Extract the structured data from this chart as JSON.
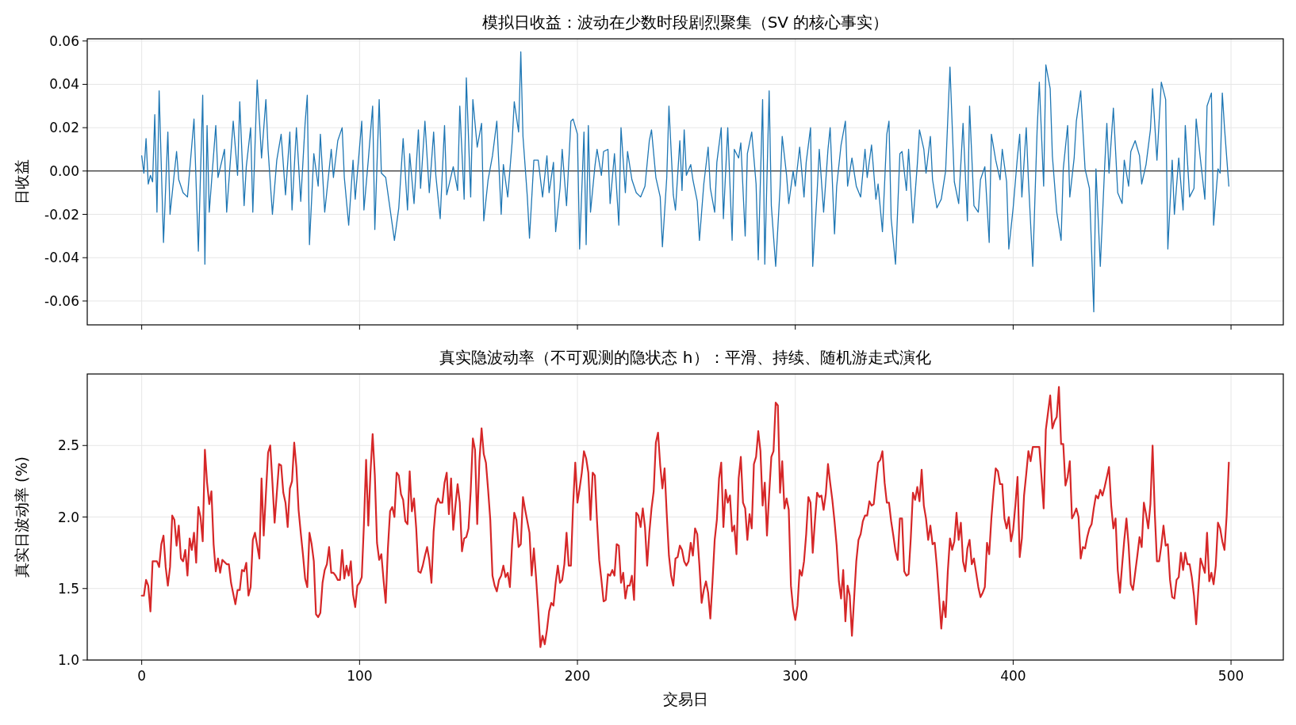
{
  "chart_data": [
    {
      "type": "line",
      "title": "模拟日收益：波动在少数时段剧烈聚集（SV 的核心事实）",
      "ylabel": "日收益",
      "xlim": [
        -25,
        524
      ],
      "ylim": [
        -0.071,
        0.061
      ],
      "xticks": [
        0,
        100,
        200,
        300,
        400,
        500
      ],
      "yticks": [
        -0.06,
        -0.04,
        -0.02,
        {
          "value": 0,
          "label": "0.00"
        },
        0.02,
        0.04,
        0.06
      ],
      "tick_labels": "y",
      "grid": true,
      "ref_lines": [
        {
          "axis": "y",
          "value": 0,
          "color": "#000000"
        }
      ],
      "series": [
        {
          "color": "#1f77b4",
          "x": [
            0,
            1,
            2,
            3,
            4,
            5,
            6,
            7,
            8,
            10,
            12,
            13,
            16,
            17,
            19,
            21,
            24,
            26,
            28,
            29,
            30,
            31,
            34,
            35,
            38,
            39,
            42,
            44,
            45,
            47,
            48,
            50,
            51,
            53,
            55,
            57,
            58,
            60,
            62,
            64,
            66,
            68,
            69,
            71,
            73,
            75,
            76,
            77,
            79,
            81,
            82,
            84,
            87,
            88,
            90,
            92,
            93,
            95,
            97,
            98,
            101,
            102,
            104,
            106,
            107,
            109,
            110,
            112,
            116,
            118,
            120,
            122,
            123,
            125,
            127,
            128,
            130,
            132,
            134,
            135,
            137,
            139,
            140,
            143,
            145,
            146,
            148,
            149,
            151,
            152,
            154,
            156,
            157,
            159,
            161,
            163,
            165,
            166,
            168,
            170,
            171,
            173,
            174,
            175,
            177,
            178,
            180,
            182,
            184,
            186,
            187,
            189,
            190,
            192,
            193,
            195,
            197,
            198,
            200,
            201,
            203,
            204,
            205,
            206,
            208,
            209,
            211,
            212,
            214,
            215,
            217,
            219,
            220,
            222,
            223,
            225,
            227,
            229,
            231,
            233,
            234,
            236,
            238,
            239,
            241,
            242,
            244,
            245,
            247,
            248,
            249,
            250,
            252,
            253,
            255,
            256,
            258,
            260,
            261,
            263,
            264,
            266,
            267,
            269,
            271,
            272,
            274,
            275,
            277,
            278,
            280,
            282,
            283,
            285,
            286,
            288,
            289,
            291,
            293,
            294,
            296,
            297,
            299,
            300,
            302,
            304,
            305,
            307,
            308,
            310,
            311,
            313,
            315,
            316,
            318,
            319,
            321,
            323,
            324,
            326,
            328,
            330,
            332,
            333,
            335,
            337,
            338,
            340,
            342,
            343,
            344,
            346,
            348,
            349,
            351,
            352,
            354,
            356,
            357,
            359,
            360,
            362,
            363,
            365,
            367,
            369,
            371,
            373,
            375,
            377,
            379,
            380,
            382,
            384,
            385,
            387,
            389,
            390,
            392,
            394,
            395,
            397,
            398,
            400,
            402,
            403,
            404,
            406,
            407,
            409,
            411,
            412,
            414,
            415,
            417,
            418,
            420,
            422,
            423,
            425,
            426,
            428,
            429,
            431,
            433,
            435,
            437,
            438,
            440,
            442,
            443,
            444,
            446,
            448,
            450,
            451,
            453,
            454,
            456,
            458,
            459,
            461,
            463,
            464,
            466,
            468,
            470,
            471,
            473,
            474,
            476,
            478,
            479,
            481,
            483,
            484,
            486,
            488,
            489,
            491,
            492,
            494,
            495,
            496,
            497,
            499
          ],
          "values": [
            0.007,
            -0.001,
            0.015,
            -0.006,
            -0.002,
            -0.005,
            0.026,
            -0.019,
            0.037,
            -0.033,
            0.018,
            -0.02,
            0.009,
            -0.004,
            -0.01,
            -0.012,
            0.024,
            -0.037,
            0.035,
            -0.043,
            0.021,
            -0.019,
            0.021,
            -0.003,
            0.01,
            -0.019,
            0.023,
            -0.002,
            0.032,
            -0.016,
            0.002,
            0.02,
            -0.019,
            0.042,
            0.006,
            0.033,
            0.01,
            -0.02,
            0.005,
            0.017,
            -0.011,
            0.018,
            -0.018,
            0.02,
            -0.014,
            0.022,
            0.035,
            -0.034,
            0.008,
            -0.007,
            0.017,
            -0.019,
            0.01,
            -0.003,
            0.014,
            0.02,
            -0.003,
            -0.025,
            0.005,
            -0.013,
            0.023,
            -0.018,
            0.005,
            0.03,
            -0.027,
            0.033,
            -0.001,
            -0.003,
            -0.032,
            -0.017,
            0.015,
            -0.018,
            0.008,
            -0.015,
            0.019,
            -0.008,
            0.023,
            -0.01,
            0.018,
            -0.002,
            -0.022,
            0.021,
            -0.011,
            0.002,
            -0.009,
            0.03,
            -0.013,
            0.043,
            -0.012,
            0.033,
            0.011,
            0.022,
            -0.023,
            -0.004,
            0.007,
            0.023,
            -0.02,
            0.003,
            -0.012,
            0.013,
            0.032,
            0.018,
            0.055,
            0.016,
            -0.012,
            -0.031,
            0.005,
            0.005,
            -0.012,
            0.007,
            -0.01,
            0.004,
            -0.028,
            -0.008,
            0.01,
            -0.016,
            0.023,
            0.024,
            0.017,
            -0.036,
            0.018,
            -0.034,
            0.021,
            -0.019,
            0.002,
            0.01,
            -0.002,
            0.009,
            0.01,
            -0.015,
            0.008,
            -0.025,
            0.02,
            -0.01,
            0.009,
            -0.004,
            -0.01,
            -0.012,
            -0.007,
            0.014,
            0.019,
            -0.003,
            -0.012,
            -0.035,
            -0.003,
            0.03,
            -0.011,
            -0.018,
            0.014,
            -0.009,
            0.019,
            -0.002,
            0.003,
            -0.004,
            -0.014,
            -0.032,
            -0.006,
            0.011,
            -0.008,
            -0.019,
            0.004,
            0.02,
            -0.022,
            0.02,
            -0.032,
            0.01,
            0.006,
            0.013,
            -0.03,
            0.008,
            0.018,
            -0.006,
            -0.041,
            0.033,
            -0.043,
            0.037,
            -0.016,
            -0.044,
            -0.008,
            0.016,
            -0.002,
            -0.015,
            0.0,
            -0.007,
            0.011,
            -0.012,
            0.004,
            0.02,
            -0.044,
            -0.01,
            0.01,
            -0.019,
            0.01,
            0.02,
            -0.029,
            -0.007,
            0.012,
            0.023,
            -0.007,
            0.006,
            -0.007,
            -0.012,
            0.01,
            -0.003,
            0.012,
            -0.013,
            -0.006,
            -0.028,
            0.017,
            0.023,
            -0.022,
            -0.043,
            0.008,
            0.009,
            -0.009,
            0.01,
            -0.024,
            0.003,
            0.019,
            0.01,
            -0.001,
            0.016,
            -0.004,
            -0.017,
            -0.013,
            0.0,
            0.048,
            -0.005,
            -0.015,
            0.022,
            -0.023,
            0.03,
            -0.016,
            -0.019,
            -0.004,
            0.002,
            -0.033,
            0.017,
            0.005,
            -0.004,
            0.01,
            -0.005,
            -0.036,
            -0.017,
            0.007,
            0.017,
            -0.012,
            0.02,
            -0.004,
            -0.044,
            0.019,
            0.041,
            -0.007,
            0.049,
            0.038,
            0.007,
            -0.019,
            -0.032,
            0.001,
            0.021,
            -0.012,
            0.006,
            0.023,
            0.037,
            0.001,
            -0.008,
            -0.065,
            0.001,
            -0.044,
            0.002,
            0.022,
            -0.001,
            0.029,
            -0.01,
            -0.015,
            0.005,
            -0.007,
            0.009,
            0.014,
            0.007,
            -0.006,
            0.003,
            0.019,
            0.038,
            0.005,
            0.041,
            0.033,
            -0.036,
            0.005,
            -0.02,
            0.006,
            -0.018,
            0.021,
            -0.012,
            -0.008,
            0.024,
            0.005,
            -0.013,
            0.03,
            0.036,
            -0.025,
            0.001,
            -0.001,
            0.036,
            0.02,
            -0.007
          ]
        }
      ]
    },
    {
      "type": "line",
      "title": "真实隐波动率（不可观测的隐状态 h）：平滑、持续、随机游走式演化",
      "xlabel": "交易日",
      "ylabel": "真实日波动率 (%)",
      "xlim": [
        -25,
        524
      ],
      "ylim": [
        1.0,
        3.0
      ],
      "xticks": [
        0,
        100,
        200,
        300,
        400,
        500
      ],
      "yticks": [
        {
          "value": 1,
          "label": "1.0"
        },
        1.5,
        {
          "value": 2,
          "label": "2.0"
        },
        2.5
      ],
      "grid": true,
      "series": [
        {
          "color": "#d62728",
          "x": [
            0,
            1,
            2,
            3,
            4,
            5,
            7,
            8,
            9,
            10,
            11,
            12,
            13,
            14,
            15,
            16,
            17,
            18,
            19,
            20,
            21,
            22,
            23,
            24,
            25,
            26,
            27,
            28,
            29,
            30,
            31,
            32,
            33,
            34,
            35,
            36,
            37,
            39,
            40,
            41,
            43,
            44,
            45,
            46,
            47,
            48,
            49,
            50,
            51,
            52,
            54,
            55,
            56,
            58,
            59,
            60,
            61,
            63,
            64,
            65,
            66,
            67,
            68,
            69,
            70,
            71,
            72,
            73,
            74,
            75,
            76,
            77,
            78,
            79,
            80,
            81,
            82,
            83,
            84,
            85,
            86,
            87,
            88,
            89,
            90,
            91,
            92,
            93,
            94,
            95,
            96,
            97,
            98,
            99,
            100,
            101,
            102,
            103,
            104,
            105,
            106,
            107,
            108,
            109,
            110,
            111,
            112,
            113,
            114,
            115,
            116,
            117,
            118,
            119,
            120,
            121,
            122,
            123,
            124,
            125,
            126,
            127,
            128,
            129,
            130,
            131,
            132,
            133,
            134,
            135,
            136,
            137,
            138,
            139,
            140,
            141,
            142,
            143,
            144,
            145,
            146,
            147,
            148,
            149,
            150,
            151,
            152,
            153,
            154,
            155,
            156,
            157,
            158,
            159,
            160,
            161,
            162,
            163,
            164,
            165,
            166,
            167,
            168,
            169,
            170,
            171,
            172,
            173,
            174,
            175,
            176,
            177,
            178,
            179,
            180,
            181,
            182,
            183,
            184,
            185,
            186,
            187,
            188,
            189,
            190,
            191,
            192,
            193,
            194,
            195,
            196,
            197,
            198,
            199,
            200,
            201,
            202,
            203,
            204,
            205,
            206,
            207,
            208,
            209,
            210,
            211,
            212,
            213,
            214,
            215,
            216,
            217,
            218,
            219,
            220,
            221,
            222,
            223,
            224,
            225,
            226,
            227,
            228,
            229,
            230,
            231,
            232,
            233,
            234,
            235,
            236,
            237,
            238,
            239,
            240,
            241,
            242,
            243,
            244,
            245,
            246,
            247,
            248,
            249,
            250,
            251,
            252,
            253,
            254,
            255,
            256,
            257,
            258,
            259,
            260,
            261,
            262,
            263,
            264,
            265,
            266,
            267,
            268,
            269,
            270,
            271,
            272,
            273,
            274,
            275,
            276,
            277,
            278,
            279,
            280,
            281,
            282,
            283,
            284,
            285,
            286,
            287,
            288,
            289,
            290,
            291,
            292,
            293,
            294,
            295,
            296,
            297,
            298,
            299,
            300,
            301,
            302,
            303,
            304,
            305,
            306,
            307,
            308,
            309,
            310,
            311,
            312,
            313,
            314,
            315,
            316,
            317,
            318,
            319,
            320,
            321,
            322,
            323,
            324,
            325,
            326,
            327,
            328,
            329,
            330,
            331,
            332,
            333,
            334,
            335,
            336,
            337,
            338,
            339,
            340,
            341,
            342,
            343,
            344,
            345,
            346,
            347,
            348,
            349,
            350,
            351,
            352,
            353,
            354,
            355,
            356,
            357,
            358,
            359,
            360,
            361,
            362,
            363,
            364,
            365,
            366,
            367,
            368,
            369,
            370,
            371,
            372,
            373,
            374,
            375,
            376,
            377,
            378,
            379,
            380,
            381,
            382,
            383,
            384,
            385,
            386,
            387,
            388,
            389,
            390,
            391,
            392,
            393,
            394,
            395,
            396,
            397,
            398,
            399,
            400,
            401,
            402,
            403,
            404,
            405,
            406,
            407,
            408,
            409,
            410,
            411,
            412,
            413,
            414,
            415,
            416,
            417,
            418,
            419,
            420,
            421,
            422,
            423,
            424,
            425,
            426,
            427,
            428,
            429,
            430,
            431,
            432,
            433,
            434,
            435,
            436,
            437,
            438,
            439,
            440,
            441,
            442,
            443,
            444,
            445,
            446,
            447,
            448,
            449,
            450,
            451,
            452,
            453,
            454,
            455,
            456,
            457,
            458,
            459,
            460,
            461,
            462,
            463,
            464,
            465,
            466,
            467,
            468,
            469,
            470,
            471,
            472,
            473,
            474,
            475,
            476,
            477,
            478,
            479,
            480,
            481,
            482,
            483,
            484,
            485,
            486,
            487,
            488,
            489,
            490,
            491,
            492,
            493,
            494,
            495,
            496,
            497,
            498,
            499
          ],
          "values": [
            1.45,
            1.45,
            1.56,
            1.52,
            1.34,
            1.69,
            1.69,
            1.65,
            1.81,
            1.87,
            1.65,
            1.52,
            1.65,
            2.01,
            1.98,
            1.8,
            1.94,
            1.71,
            1.69,
            1.77,
            1.59,
            1.85,
            1.77,
            1.89,
            1.68,
            2.07,
            2.0,
            1.83,
            2.47,
            2.24,
            2.09,
            2.18,
            1.81,
            1.62,
            1.71,
            1.61,
            1.7,
            1.67,
            1.67,
            1.54,
            1.39,
            1.49,
            1.49,
            1.63,
            1.62,
            1.68,
            1.45,
            1.51,
            1.84,
            1.89,
            1.71,
            2.27,
            1.87,
            2.45,
            2.5,
            2.24,
            1.96,
            2.37,
            2.36,
            2.17,
            2.1,
            1.93,
            2.2,
            2.25,
            2.52,
            2.35,
            2.05,
            1.89,
            1.74,
            1.57,
            1.51,
            1.89,
            1.81,
            1.69,
            1.32,
            1.3,
            1.33,
            1.54,
            1.63,
            1.67,
            1.79,
            1.61,
            1.61,
            1.59,
            1.56,
            1.56,
            1.77,
            1.57,
            1.66,
            1.59,
            1.69,
            1.46,
            1.37,
            1.52,
            1.54,
            1.58,
            1.95,
            2.4,
            1.94,
            2.31,
            2.58,
            2.29,
            1.82,
            1.7,
            1.74,
            1.56,
            1.4,
            1.78,
            2.04,
            2.07,
            2.0,
            2.31,
            2.29,
            2.16,
            2.12,
            1.97,
            1.95,
            2.32,
            2.04,
            2.13,
            1.92,
            1.62,
            1.61,
            1.66,
            1.73,
            1.79,
            1.7,
            1.54,
            1.9,
            2.08,
            2.13,
            2.1,
            2.1,
            2.24,
            2.31,
            2.02,
            2.27,
            1.91,
            2.08,
            2.23,
            2.1,
            1.76,
            1.85,
            1.86,
            1.92,
            2.18,
            2.55,
            2.47,
            1.95,
            2.39,
            2.62,
            2.44,
            2.38,
            2.19,
            1.98,
            1.59,
            1.52,
            1.48,
            1.56,
            1.59,
            1.66,
            1.58,
            1.61,
            1.51,
            1.81,
            2.03,
            1.98,
            1.79,
            1.81,
            2.14,
            2.05,
            1.97,
            1.89,
            1.59,
            1.78,
            1.58,
            1.35,
            1.09,
            1.17,
            1.11,
            1.21,
            1.34,
            1.4,
            1.38,
            1.54,
            1.66,
            1.54,
            1.56,
            1.67,
            1.89,
            1.66,
            1.66,
            2.08,
            2.38,
            2.1,
            2.2,
            2.31,
            2.46,
            2.41,
            2.31,
            1.98,
            2.31,
            2.29,
            1.97,
            1.7,
            1.56,
            1.41,
            1.42,
            1.6,
            1.59,
            1.63,
            1.59,
            1.81,
            1.8,
            1.54,
            1.61,
            1.43,
            1.52,
            1.52,
            1.59,
            1.42,
            2.03,
            2.01,
            1.93,
            2.06,
            1.93,
            1.66,
            1.89,
            2.06,
            2.18,
            2.52,
            2.59,
            2.36,
            2.2,
            2.34,
            2.02,
            1.73,
            1.59,
            1.52,
            1.71,
            1.72,
            1.8,
            1.77,
            1.69,
            1.66,
            1.69,
            1.82,
            1.73,
            1.92,
            1.88,
            1.66,
            1.4,
            1.49,
            1.55,
            1.47,
            1.29,
            1.55,
            1.84,
            1.98,
            2.27,
            2.38,
            1.93,
            2.19,
            2.1,
            2.15,
            1.9,
            1.94,
            1.74,
            2.27,
            2.42,
            2.1,
            2.06,
            1.84,
            2.02,
            1.92,
            2.37,
            2.42,
            2.6,
            2.46,
            2.08,
            2.24,
            1.87,
            2.16,
            2.42,
            2.46,
            2.8,
            2.78,
            2.17,
            2.39,
            2.06,
            2.13,
            2.05,
            1.52,
            1.36,
            1.28,
            1.38,
            1.63,
            1.59,
            1.69,
            1.88,
            2.14,
            2.1,
            1.75,
            1.97,
            2.17,
            2.14,
            2.15,
            2.05,
            2.16,
            2.37,
            2.24,
            2.12,
            1.97,
            1.8,
            1.55,
            1.43,
            1.63,
            1.27,
            1.52,
            1.45,
            1.17,
            1.43,
            1.69,
            1.84,
            1.88,
            1.97,
            2.01,
            2.01,
            2.11,
            2.08,
            2.09,
            2.24,
            2.38,
            2.4,
            2.46,
            2.24,
            2.1,
            2.1,
            1.97,
            1.87,
            1.76,
            1.7,
            1.99,
            1.99,
            1.62,
            1.59,
            1.6,
            1.85,
            2.17,
            2.12,
            2.21,
            2.11,
            2.33,
            2.08,
            1.99,
            1.84,
            1.94,
            1.81,
            1.82,
            1.65,
            1.44,
            1.22,
            1.41,
            1.3,
            1.62,
            1.85,
            1.77,
            1.83,
            2.03,
            1.84,
            1.96,
            1.69,
            1.62,
            1.78,
            1.84,
            1.67,
            1.71,
            1.61,
            1.51,
            1.44,
            1.47,
            1.51,
            1.82,
            1.74,
            1.99,
            2.18,
            2.34,
            2.32,
            2.23,
            2.23,
            1.99,
            1.92,
            2.0,
            1.83,
            1.91,
            2.08,
            2.28,
            1.72,
            1.85,
            2.15,
            2.3,
            2.46,
            2.39,
            2.49,
            2.49,
            2.49,
            2.49,
            2.28,
            2.06,
            2.61,
            2.73,
            2.85,
            2.62,
            2.67,
            2.7,
            2.91,
            2.51,
            2.51,
            2.22,
            2.28,
            2.39,
            1.99,
            2.02,
            2.06,
            2.0,
            1.71,
            1.79,
            1.78,
            1.86,
            1.92,
            1.95,
            2.06,
            2.15,
            2.13,
            2.19,
            2.15,
            2.21,
            2.28,
            2.35,
            2.08,
            1.92,
            1.99,
            1.63,
            1.47,
            1.66,
            1.84,
            1.99,
            1.8,
            1.53,
            1.49,
            1.61,
            1.73,
            1.86,
            1.79,
            2.1,
            2.02,
            1.92,
            2.09,
            2.5,
            2.03,
            1.69,
            1.69,
            1.8,
            1.94,
            1.8,
            1.81,
            1.56,
            1.44,
            1.43,
            1.56,
            1.58,
            1.75,
            1.63,
            1.75,
            1.67,
            1.67,
            1.58,
            1.45,
            1.25,
            1.49,
            1.71,
            1.66,
            1.61,
            1.89,
            1.55,
            1.61,
            1.53,
            1.66,
            1.96,
            1.92,
            1.83,
            1.77,
            2.01,
            2.38
          ]
        }
      ]
    }
  ]
}
